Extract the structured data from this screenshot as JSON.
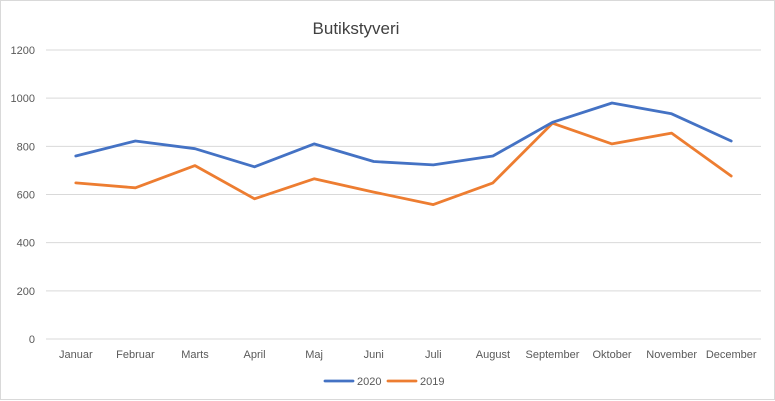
{
  "chart_data": {
    "type": "line",
    "title": "Butikstyveri",
    "xlabel": "",
    "ylabel": "",
    "categories": [
      "Januar",
      "Februar",
      "Marts",
      "April",
      "Maj",
      "Juni",
      "Juli",
      "August",
      "September",
      "Oktober",
      "November",
      "December"
    ],
    "ylim": [
      0,
      1200
    ],
    "yticks": [
      "0",
      "200",
      "400",
      "600",
      "800",
      "1000",
      "1200"
    ],
    "grid": true,
    "legend": "bottom",
    "series": [
      {
        "name": "2020",
        "color": "#4472c4",
        "values": [
          760,
          822,
          790,
          715,
          810,
          737,
          723,
          760,
          900,
          980,
          935,
          822
        ]
      },
      {
        "name": "2019",
        "color": "#ed7d31",
        "values": [
          648,
          628,
          720,
          582,
          665,
          610,
          558,
          648,
          896,
          810,
          855,
          677
        ]
      }
    ]
  }
}
